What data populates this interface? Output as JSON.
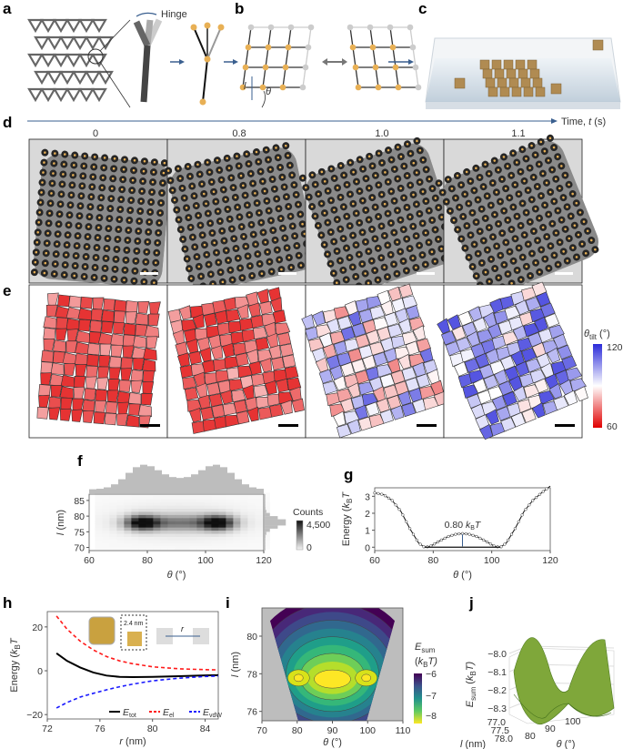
{
  "panel_labels": {
    "a": "a",
    "b": "b",
    "c": "c",
    "d": "d",
    "e": "e",
    "f": "f",
    "g": "g",
    "h": "h",
    "i": "i",
    "j": "j"
  },
  "panel_a": {
    "hinge_label": "Hinge"
  },
  "panel_b": {
    "length_symbol": "l",
    "angle_symbol": "θ"
  },
  "panel_d": {
    "time_ticks": [
      "0",
      "0.8",
      "1.0",
      "1.1"
    ],
    "time_axis_label": "Time, ",
    "time_symbol": "t",
    "time_unit": " (s)"
  },
  "panel_e": {
    "colorbar_symbol": "θ",
    "colorbar_sub": "tilt",
    "colorbar_unit": " (°)",
    "colorbar_max": "120",
    "colorbar_min": "60",
    "colors": {
      "high": "#2b2bd9",
      "mid": "#ffffff",
      "low": "#e00000"
    }
  },
  "chart_data": [
    {
      "id": "f",
      "type": "heatmap",
      "xlabel_symbol": "θ",
      "xlabel_unit": " (°)",
      "ylabel_symbol": "l",
      "ylabel_unit": " (nm)",
      "xlim": [
        60,
        120
      ],
      "ylim": [
        69,
        87
      ],
      "xticks": [
        "60",
        "80",
        "100",
        "120"
      ],
      "yticks": [
        "70",
        "75",
        "80",
        "85"
      ],
      "peaks": [
        {
          "theta": 77,
          "l": 77.5
        },
        {
          "theta": 103,
          "l": 77.5
        }
      ],
      "colorbar_title": "Counts",
      "colorbar_max": "4,500",
      "colorbar_min": "0",
      "marginal_histograms": true
    },
    {
      "id": "g",
      "type": "line",
      "xlabel_symbol": "θ",
      "xlabel_unit": " (°)",
      "ylabel": "Energy (",
      "ylabel_symbol": "k",
      "ylabel_sub": "B",
      "ylabel_t": "T",
      "xlim": [
        60,
        120
      ],
      "ylim": [
        -0.2,
        3.5
      ],
      "xticks": [
        "60",
        "80",
        "100",
        "120"
      ],
      "yticks": [
        "0",
        "1",
        "2",
        "3"
      ],
      "x": [
        60,
        63,
        66,
        69,
        72,
        75,
        77,
        79,
        82,
        85,
        88,
        90,
        92,
        95,
        98,
        101,
        103,
        105,
        108,
        111,
        114,
        117,
        120
      ],
      "y": [
        3.2,
        3.1,
        2.75,
        2.1,
        1.1,
        0.25,
        0.0,
        0.05,
        0.35,
        0.62,
        0.78,
        0.8,
        0.78,
        0.62,
        0.35,
        0.05,
        0.0,
        0.25,
        1.1,
        2.1,
        2.75,
        3.2,
        3.6
      ],
      "annotation": "0.80 ",
      "annotation_sym": "k",
      "annotation_sub": "B",
      "annotation_t": "T"
    },
    {
      "id": "h",
      "type": "line",
      "xlabel_symbol": "r",
      "xlabel_unit": " (nm)",
      "ylabel": "Energy (",
      "ylabel_symbol": "k",
      "ylabel_sub": "B",
      "ylabel_t": "T",
      "xlim": [
        72,
        85
      ],
      "ylim": [
        -22,
        27
      ],
      "xticks": [
        "72",
        "76",
        "80",
        "84"
      ],
      "yticks": [
        "−20",
        "0",
        "20"
      ],
      "x": [
        72.7,
        73.5,
        74.5,
        75.5,
        76.5,
        77.5,
        78.5,
        80,
        82,
        84,
        85
      ],
      "series": [
        {
          "name": "E",
          "sub": "tot",
          "color": "#000000",
          "y": [
            8,
            4.5,
            1.5,
            -0.8,
            -2.2,
            -2.8,
            -2.9,
            -2.8,
            -2.5,
            -2.1,
            -2.0
          ]
        },
        {
          "name": "E",
          "sub": "el",
          "color": "#ff1a1a",
          "y": [
            25,
            19,
            13.5,
            9.5,
            6.5,
            4.5,
            3.2,
            1.8,
            0.9,
            0.5,
            0.4
          ]
        },
        {
          "name": "E",
          "sub": "vdW",
          "color": "#1a1aff",
          "y": [
            -17,
            -14.5,
            -12,
            -10.3,
            -8.7,
            -7.3,
            -6.1,
            -4.6,
            -3.4,
            -2.6,
            -2.4
          ]
        }
      ],
      "inset_label": "2.4 nm",
      "inset_r": "r"
    },
    {
      "id": "i",
      "type": "heatmap",
      "xlabel_symbol": "θ",
      "xlabel_unit": " (°)",
      "ylabel_symbol": "l",
      "ylabel_unit": " (nm)",
      "xlim": [
        70,
        110
      ],
      "ylim": [
        75.5,
        81.5
      ],
      "xticks": [
        "70",
        "80",
        "90",
        "100",
        "110"
      ],
      "yticks": [
        "76",
        "78",
        "80"
      ],
      "minima": [
        {
          "theta": 79,
          "l": 77.6
        },
        {
          "theta": 101,
          "l": 77.6
        }
      ],
      "colorbar_title_sym": "E",
      "colorbar_title_sub": "sum",
      "colorbar_unit_open": "(",
      "colorbar_unit_k": "k",
      "colorbar_unit_sub": "B",
      "colorbar_unit_t": "T)",
      "colorbar_ticks": [
        "−6",
        "−7",
        "−8"
      ],
      "zlim": [
        -8.5,
        -5.8
      ]
    },
    {
      "id": "j",
      "type": "surface",
      "zlabel_sym": "E",
      "zlabel_sub": "sum",
      "zlabel_unit": " (",
      "zlabel_k": "k",
      "zlabel_ksub": "B",
      "zlabel_t": "T)",
      "zticks": [
        "−8.0",
        "−8.1",
        "−8.2",
        "−8.3"
      ],
      "lticks": [
        "77.0",
        "77.5",
        "78.0"
      ],
      "thetaticks": [
        "80",
        "90",
        "100"
      ],
      "xlabel_symbol": "θ",
      "xlabel_unit": " (°)",
      "ylabel_symbol": "l",
      "ylabel_unit": " (nm)",
      "zlim": [
        -8.35,
        -8.0
      ]
    }
  ]
}
